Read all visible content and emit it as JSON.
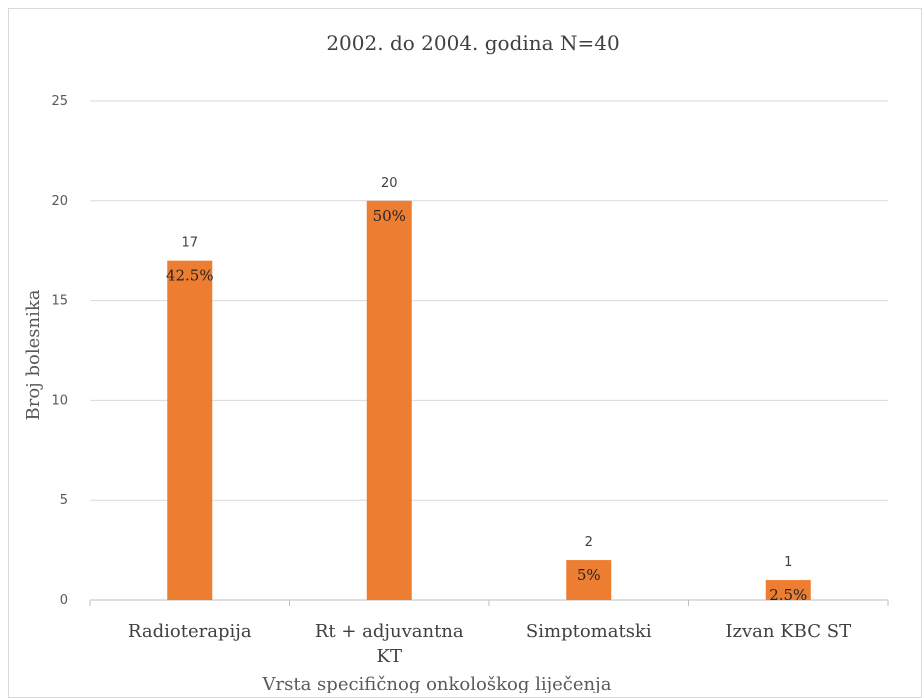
{
  "chart_data": {
    "type": "bar",
    "title": "2002. do 2004. godina  N=40",
    "xlabel": "Vrsta specifičnog  onkološkog  liječenja",
    "ylabel": "Broj bolesnika",
    "ylim": [
      0,
      25
    ],
    "yticks": [
      0,
      5,
      10,
      15,
      20,
      25
    ],
    "grid": true,
    "categories": [
      [
        "Radioterapija"
      ],
      [
        "Rt + adjuvantna",
        "KT"
      ],
      [
        "Simptomatski"
      ],
      [
        "Izvan KBC ST"
      ]
    ],
    "values": [
      17,
      20,
      2,
      1
    ],
    "value_labels": [
      "17",
      "20",
      "2",
      "1"
    ],
    "percent_labels": [
      "42.5%",
      "50%",
      "5%",
      "2.5%"
    ],
    "bar_color": "#ed7d31"
  }
}
